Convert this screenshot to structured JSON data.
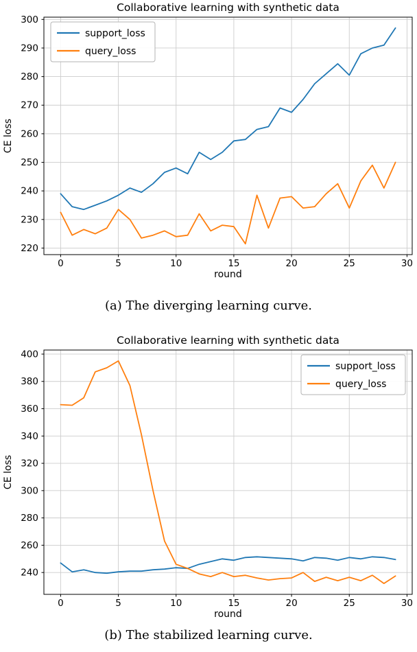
{
  "colors": {
    "support": "#1f77b4",
    "query": "#ff7f0e",
    "grid": "#cccccc",
    "axis": "#000000",
    "legend_border": "#b3b3b3",
    "background": "#ffffff"
  },
  "figures": [
    {
      "caption": "(a) The diverging learning curve."
    },
    {
      "caption": "(b) The stabilized learning curve."
    }
  ],
  "chart_data": [
    {
      "type": "line",
      "title": "Collaborative learning with synthetic data",
      "xlabel": "round",
      "ylabel": "CE loss",
      "grid": true,
      "legend_position": "upper-left",
      "xlim": [
        -1.45,
        30.45
      ],
      "ylim": [
        217.7,
        300.8
      ],
      "xticks": [
        0,
        5,
        10,
        15,
        20,
        25,
        30
      ],
      "yticks": [
        220,
        230,
        240,
        250,
        260,
        270,
        280,
        290,
        300
      ],
      "x": [
        0,
        1,
        2,
        3,
        4,
        5,
        6,
        7,
        8,
        9,
        10,
        11,
        12,
        13,
        14,
        15,
        16,
        17,
        18,
        19,
        20,
        21,
        22,
        23,
        24,
        25,
        26,
        27,
        28,
        29
      ],
      "series": [
        {
          "name": "support_loss",
          "color": "#1f77b4",
          "values": [
            239,
            234.5,
            233.5,
            235,
            236.5,
            238.5,
            241,
            239.5,
            242.5,
            246.5,
            248,
            246,
            253.5,
            251,
            253.5,
            257.5,
            258,
            261.5,
            262.5,
            269,
            267.5,
            272,
            277.5,
            281,
            284.5,
            280.5,
            288,
            290,
            291,
            297
          ]
        },
        {
          "name": "query_loss",
          "color": "#ff7f0e",
          "values": [
            232.5,
            224.5,
            226.5,
            225,
            227,
            233.5,
            230,
            223.5,
            224.5,
            226,
            224,
            224.5,
            232,
            226,
            228,
            227.5,
            221.5,
            238.5,
            227,
            237.5,
            238,
            234,
            234.5,
            239,
            242.5,
            234,
            243.5,
            249,
            241,
            250
          ]
        }
      ]
    },
    {
      "type": "line",
      "title": "Collaborative learning with synthetic data",
      "xlabel": "round",
      "ylabel": "CE loss",
      "grid": true,
      "legend_position": "upper-right",
      "xlim": [
        -1.45,
        30.45
      ],
      "ylim": [
        224,
        403
      ],
      "xticks": [
        0,
        5,
        10,
        15,
        20,
        25,
        30
      ],
      "yticks": [
        240,
        260,
        280,
        300,
        320,
        340,
        360,
        380,
        400
      ],
      "x": [
        0,
        1,
        2,
        3,
        4,
        5,
        6,
        7,
        8,
        9,
        10,
        11,
        12,
        13,
        14,
        15,
        16,
        17,
        18,
        19,
        20,
        21,
        22,
        23,
        24,
        25,
        26,
        27,
        28,
        29
      ],
      "series": [
        {
          "name": "support_loss",
          "color": "#1f77b4",
          "values": [
            247,
            240.5,
            242,
            240,
            239.5,
            240.5,
            241,
            241,
            242,
            242.5,
            243.5,
            243,
            246,
            248,
            250,
            249,
            251,
            251.5,
            251,
            250.5,
            250,
            248.5,
            251,
            250.5,
            249,
            251,
            250,
            251.5,
            251,
            249.5
          ]
        },
        {
          "name": "query_loss",
          "color": "#ff7f0e",
          "values": [
            363,
            362.5,
            368,
            387,
            390,
            395,
            377,
            341,
            300,
            263,
            246,
            243,
            239,
            237,
            240,
            237,
            238,
            236,
            234.5,
            235.5,
            236,
            240,
            233.5,
            236.5,
            234,
            236.5,
            234,
            238,
            232,
            237.5
          ]
        }
      ]
    }
  ]
}
